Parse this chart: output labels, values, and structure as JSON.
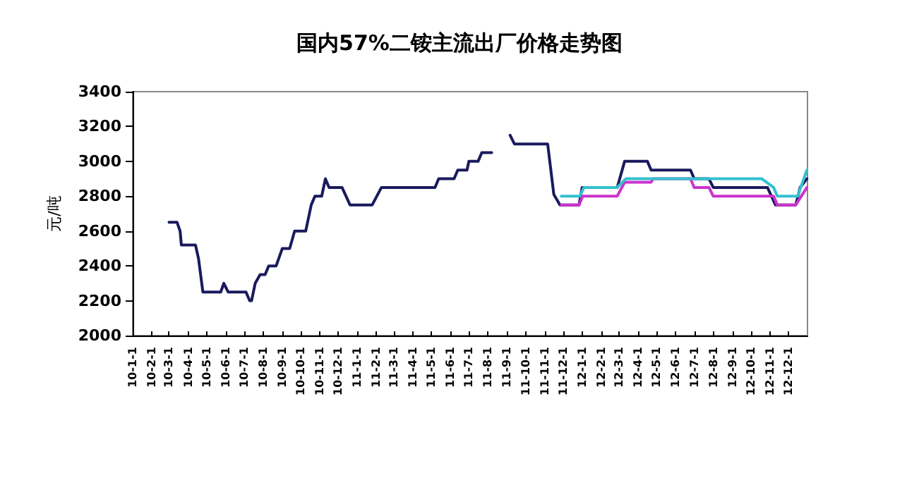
{
  "chart_data": {
    "type": "line",
    "title": "国内57%二铵主流出厂价格走势图",
    "ylabel": "元/吨",
    "xlim": [
      "2010-01-01",
      "2013-01-01"
    ],
    "xticks": [
      {
        "value": "2010-01-01",
        "label": "10-1-1"
      },
      {
        "value": "2010-02-01",
        "label": "10-2-1"
      },
      {
        "value": "2010-03-01",
        "label": "10-3-1"
      },
      {
        "value": "2010-04-01",
        "label": "10-4-1"
      },
      {
        "value": "2010-05-01",
        "label": "10-5-1"
      },
      {
        "value": "2010-06-01",
        "label": "10-6-1"
      },
      {
        "value": "2010-07-01",
        "label": "10-7-1"
      },
      {
        "value": "2010-08-01",
        "label": "10-8-1"
      },
      {
        "value": "2010-09-01",
        "label": "10-9-1"
      },
      {
        "value": "2010-10-01",
        "label": "10-10-1"
      },
      {
        "value": "2010-11-01",
        "label": "10-11-1"
      },
      {
        "value": "2010-12-01",
        "label": "10-12-1"
      },
      {
        "value": "2011-01-01",
        "label": "11-1-1"
      },
      {
        "value": "2011-02-01",
        "label": "11-2-1"
      },
      {
        "value": "2011-03-01",
        "label": "11-3-1"
      },
      {
        "value": "2011-04-01",
        "label": "11-4-1"
      },
      {
        "value": "2011-05-01",
        "label": "11-5-1"
      },
      {
        "value": "2011-06-01",
        "label": "11-6-1"
      },
      {
        "value": "2011-07-01",
        "label": "11-7-1"
      },
      {
        "value": "2011-08-01",
        "label": "11-8-1"
      },
      {
        "value": "2011-09-01",
        "label": "11-9-1"
      },
      {
        "value": "2011-10-01",
        "label": "11-10-1"
      },
      {
        "value": "2011-11-01",
        "label": "11-11-1"
      },
      {
        "value": "2011-12-01",
        "label": "11-12-1"
      },
      {
        "value": "2012-01-01",
        "label": "12-1-1"
      },
      {
        "value": "2012-02-01",
        "label": "12-2-1"
      },
      {
        "value": "2012-03-01",
        "label": "12-3-1"
      },
      {
        "value": "2012-04-01",
        "label": "12-4-1"
      },
      {
        "value": "2012-05-01",
        "label": "12-5-1"
      },
      {
        "value": "2012-06-01",
        "label": "12-6-1"
      },
      {
        "value": "2012-07-01",
        "label": "12-7-1"
      },
      {
        "value": "2012-08-01",
        "label": "12-8-1"
      },
      {
        "value": "2012-09-01",
        "label": "12-9-1"
      },
      {
        "value": "2012-10-01",
        "label": "12-10-1"
      },
      {
        "value": "2012-11-01",
        "label": "12-11-1"
      },
      {
        "value": "2012-12-01",
        "label": "12-12-1"
      }
    ],
    "ylim": [
      2000,
      3400
    ],
    "yticks": [
      2000,
      2200,
      2400,
      2600,
      2800,
      3000,
      3200,
      3400
    ],
    "grid": false,
    "marker": "none",
    "line_style": "solid",
    "series": [
      {
        "color": "#1a1a5e",
        "x": [
          "2010-03-01",
          "2010-03-14",
          "2010-03-19",
          "2010-03-21",
          "2010-04-07",
          "2010-04-13",
          "2010-04-18",
          "2010-04-25",
          "2010-05-24",
          "2010-05-29",
          "2010-06-05",
          "2010-07-04",
          "2010-07-10",
          "2010-07-13",
          "2010-07-19",
          "2010-07-27",
          "2010-08-04",
          "2010-08-10",
          "2010-08-22",
          "2010-09-01",
          "2010-09-13",
          "2010-09-21",
          "2010-10-09",
          "2010-10-18",
          "2010-10-24",
          "2010-11-04",
          "2010-11-10",
          "2010-11-16",
          "2010-12-07",
          "2010-12-20",
          "2011-01-25",
          "2011-02-09",
          "2011-05-07",
          "2011-05-13",
          "2011-06-07",
          "2011-06-13",
          "2011-06-28",
          "2011-07-01",
          "2011-07-16",
          "2011-07-22",
          "2011-08-07",
          "2011-08-20",
          "2011-09-06",
          "2011-09-13",
          "2011-11-06",
          "2011-11-16",
          "2011-11-26",
          "2011-12-27",
          "2012-01-01",
          "2012-02-27",
          "2012-03-10",
          "2012-04-16",
          "2012-04-22",
          "2012-06-25",
          "2012-07-01",
          "2012-07-25",
          "2012-08-01",
          "2012-10-28",
          "2012-11-10",
          "2012-12-13",
          "2012-12-20",
          "2012-12-31"
        ],
        "values": [
          2650,
          2650,
          2600,
          2520,
          2520,
          2520,
          2440,
          2250,
          2250,
          2300,
          2250,
          2250,
          2200,
          2200,
          2300,
          2350,
          2350,
          2400,
          2400,
          2500,
          2500,
          2600,
          2600,
          2750,
          2800,
          2800,
          2900,
          2850,
          2850,
          2750,
          2750,
          2850,
          2850,
          2900,
          2900,
          2950,
          2950,
          3000,
          3000,
          3050,
          3050,
          null,
          3150,
          3100,
          3100,
          2810,
          2750,
          2750,
          2850,
          2850,
          3000,
          3000,
          2950,
          2950,
          2900,
          2900,
          2850,
          2850,
          2750,
          2750,
          2850,
          2900
        ]
      },
      {
        "color": "#cc33cc",
        "x": [
          "2011-11-28",
          "2011-12-27",
          "2012-01-02",
          "2012-02-27",
          "2012-03-10",
          "2012-04-22",
          "2012-04-25",
          "2012-06-25",
          "2012-07-01",
          "2012-07-25",
          "2012-08-01",
          "2012-11-07",
          "2012-11-13",
          "2012-12-13",
          "2012-12-31"
        ],
        "values": [
          2750,
          2750,
          2800,
          2800,
          2880,
          2880,
          2900,
          2900,
          2850,
          2850,
          2800,
          2800,
          2750,
          2750,
          2850
        ]
      },
      {
        "color": "#33c0d0",
        "x": [
          "2011-11-28",
          "2011-12-28",
          "2012-01-04",
          "2012-02-27",
          "2012-03-12",
          "2012-10-19",
          "2012-11-07",
          "2012-11-13",
          "2012-12-16",
          "2012-12-31"
        ],
        "values": [
          2800,
          2800,
          2850,
          2850,
          2900,
          2900,
          2850,
          2800,
          2800,
          2950
        ]
      }
    ]
  }
}
